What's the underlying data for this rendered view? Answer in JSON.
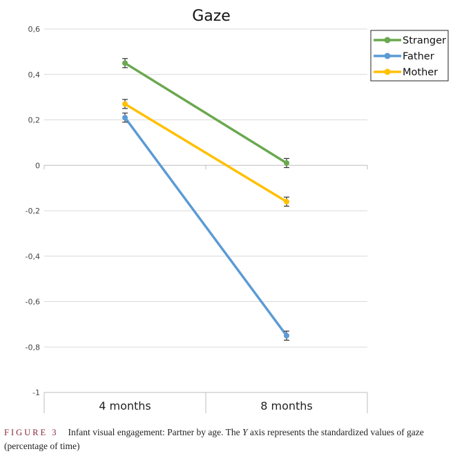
{
  "chart_data": {
    "type": "line",
    "title": "Gaze",
    "categories": [
      "4 months",
      "8 months"
    ],
    "y_ticks": [
      "0,6",
      "0,4",
      "0,2",
      "0",
      "-0,2",
      "-0,4",
      "-0,6",
      "-0,8",
      "-1"
    ],
    "ylim": [
      -1,
      0.6
    ],
    "grid": true,
    "legend_position": "top-right",
    "series": [
      {
        "name": "Stranger",
        "values": [
          0.45,
          0.01
        ],
        "errors": [
          0.02,
          0.02
        ],
        "color": "#6aa84f"
      },
      {
        "name": "Father",
        "values": [
          0.21,
          -0.75
        ],
        "errors": [
          0.02,
          0.02
        ],
        "color": "#5b9bd5"
      },
      {
        "name": "Mother",
        "values": [
          0.27,
          -0.16
        ],
        "errors": [
          0.02,
          0.02
        ],
        "color": "#ffc000"
      }
    ]
  },
  "caption": {
    "label": "FIGURE 3",
    "text": "Infant visual engagement: Partner by age. The ",
    "italic": "Y",
    "text2": " axis represents the standardized values of gaze (percentage of time)"
  }
}
